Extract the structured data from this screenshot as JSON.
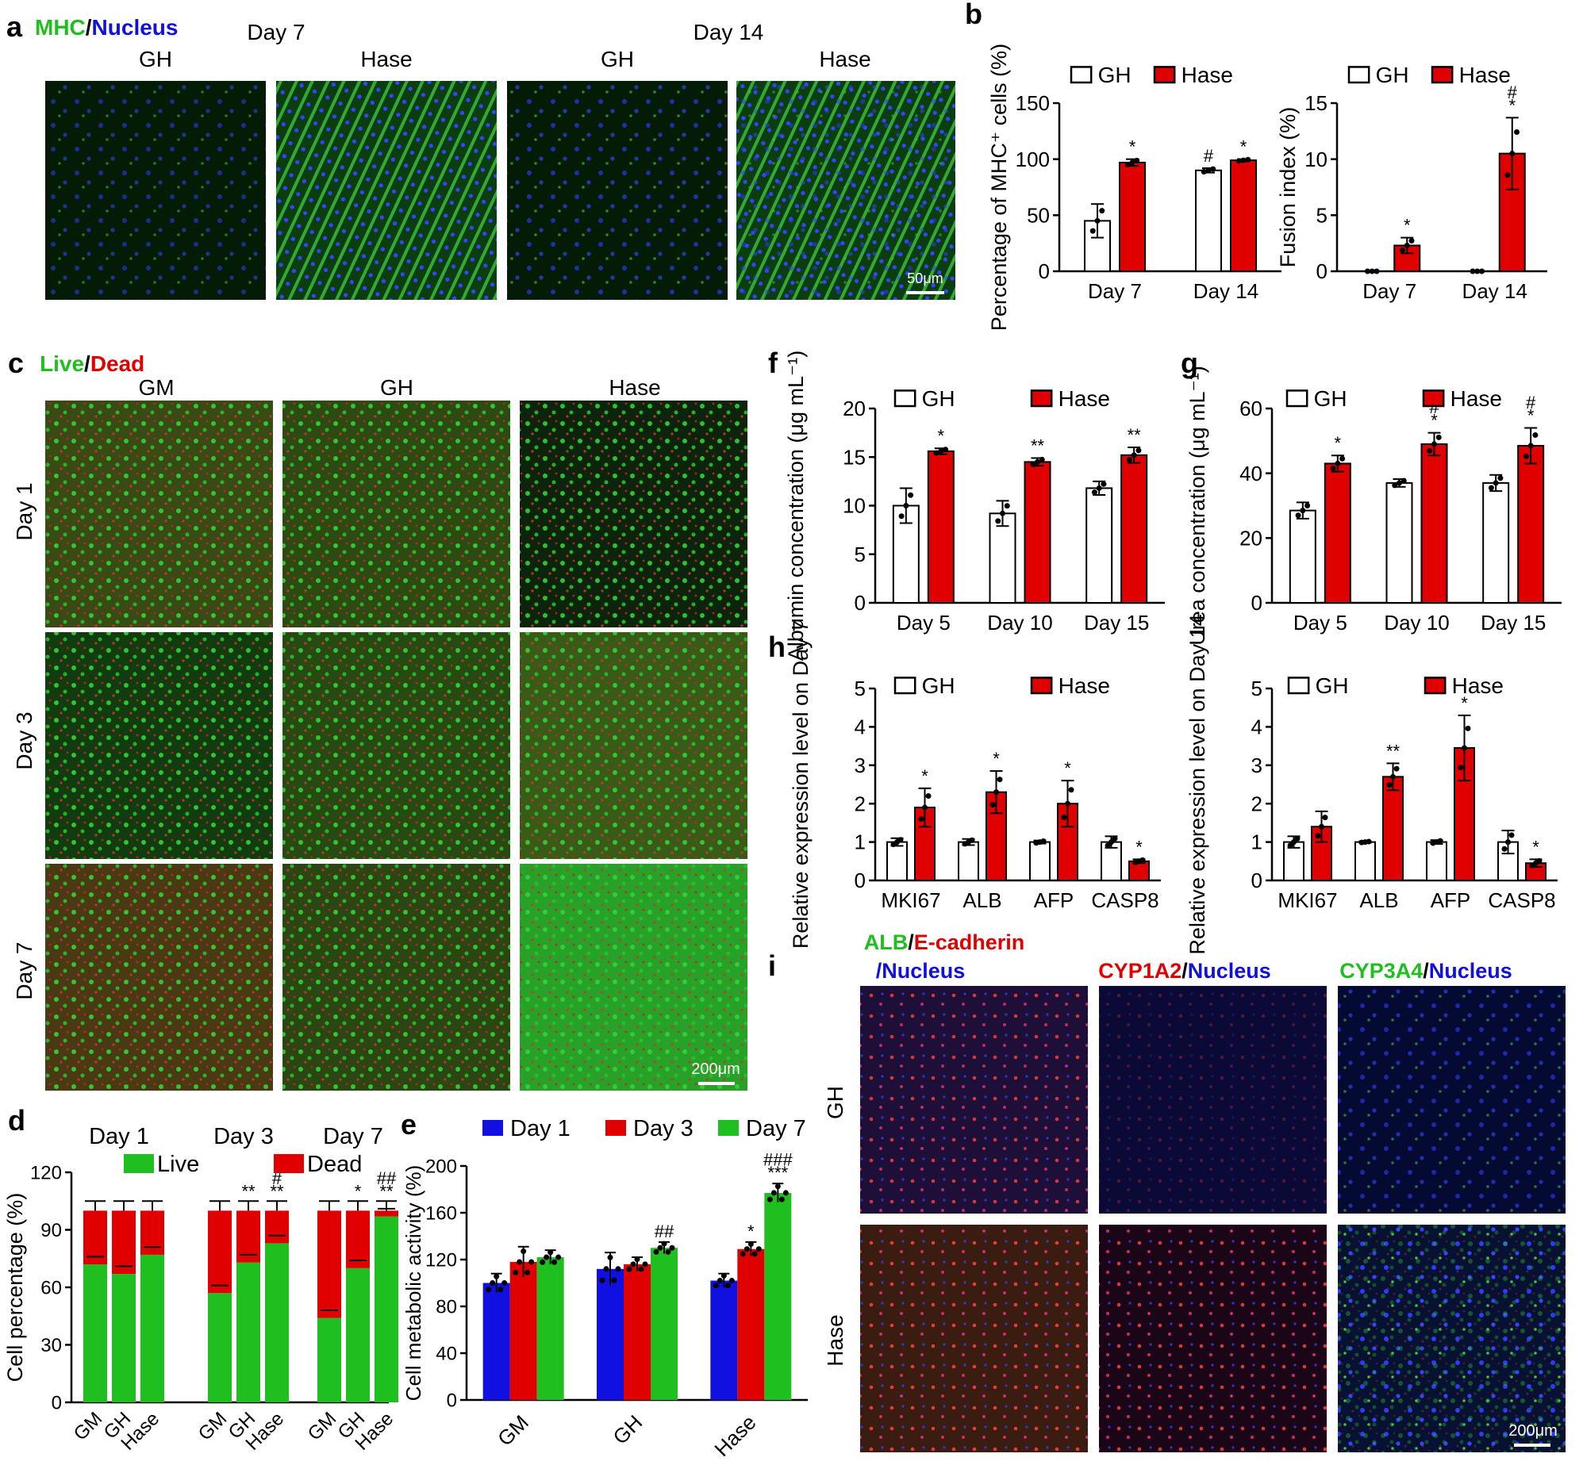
{
  "colors": {
    "green": "#1fbf1f",
    "red": "#e00000",
    "blue": "#1010e0",
    "gh_fill": "#ffffff",
    "hase_fill": "#e00000"
  },
  "panel_a": {
    "letter": "a",
    "title_mhc": "MHC",
    "title_sep": "/",
    "title_nucleus": "Nucleus",
    "day7": "Day 7",
    "day14": "Day 14",
    "cols": [
      "GH",
      "Hase",
      "GH",
      "Hase"
    ],
    "scale": "50μm",
    "images": [
      {
        "name": "mhc-gh-day7",
        "density": 0.2,
        "fiber": false
      },
      {
        "name": "mhc-hase-day7",
        "density": 0.5,
        "fiber": true
      },
      {
        "name": "mhc-gh-day14",
        "density": 0.25,
        "fiber": false
      },
      {
        "name": "mhc-hase-day14",
        "density": 0.9,
        "fiber": true
      }
    ]
  },
  "panel_b": {
    "letter": "b"
  },
  "panel_c": {
    "letter": "c",
    "title_live": "Live",
    "title_sep": "/",
    "title_dead": "Dead",
    "cols": [
      "GM",
      "GH",
      "Hase"
    ],
    "rows": [
      "Day 1",
      "Day 3",
      "Day 7"
    ],
    "scale": "200μm"
  },
  "panel_d": {
    "letter": "d"
  },
  "panel_e": {
    "letter": "e"
  },
  "panel_f": {
    "letter": "f"
  },
  "panel_g": {
    "letter": "g"
  },
  "panel_h": {
    "letter": "h"
  },
  "panel_i": {
    "letter": "i",
    "col1_a": "ALB",
    "col1_sep": "/",
    "col1_b": "E-cadherin",
    "col1_c": "/Nucleus",
    "col2_a": "CYP1A2",
    "col2_sep": "/",
    "col2_b": "Nucleus",
    "col3_a": "CYP3A4",
    "col3_sep": "/",
    "col3_b": "Nucleus",
    "rows": [
      "GH",
      "Hase"
    ],
    "scale": "200μm"
  },
  "chart_data": [
    {
      "id": "b1",
      "type": "bar",
      "categories": [
        "Day 7",
        "Day 14"
      ],
      "ylabel": "Percentage of MHC⁺ cells (%)",
      "ylim": [
        0,
        150
      ],
      "yticks": [
        0,
        50,
        100,
        150
      ],
      "legend": [
        "GH",
        "Hase"
      ],
      "series": [
        {
          "name": "GH",
          "values": [
            45,
            90
          ],
          "err": [
            15,
            2
          ],
          "marks": [
            "",
            "#"
          ]
        },
        {
          "name": "Hase",
          "values": [
            97,
            99
          ],
          "err": [
            3,
            1
          ],
          "marks": [
            "*",
            "*"
          ]
        }
      ]
    },
    {
      "id": "b2",
      "type": "bar",
      "categories": [
        "Day 7",
        "Day 14"
      ],
      "ylabel": "Fusion index (%)",
      "ylim": [
        0,
        15
      ],
      "yticks": [
        0,
        5,
        10,
        15
      ],
      "legend": [
        "GH",
        "Hase"
      ],
      "series": [
        {
          "name": "GH",
          "values": [
            0,
            0
          ],
          "err": [
            0,
            0
          ],
          "marks": [
            "",
            ""
          ]
        },
        {
          "name": "Hase",
          "values": [
            2.3,
            10.5
          ],
          "err": [
            0.7,
            3.2
          ],
          "marks": [
            "*",
            "#\n*"
          ]
        }
      ]
    },
    {
      "id": "d",
      "type": "bar",
      "groups": [
        "Day 1",
        "Day 3",
        "Day 7"
      ],
      "categories": [
        "GM",
        "GH",
        "Hase"
      ],
      "ylabel": "Cell percentage (%)",
      "ylim": [
        0,
        120
      ],
      "yticks": [
        0,
        30,
        60,
        90,
        120
      ],
      "legend": [
        "Live",
        "Dead"
      ],
      "series": [
        {
          "name": "Live",
          "values": [
            [
              72,
              67,
              77
            ],
            [
              57,
              73,
              83
            ],
            [
              44,
              70,
              97
            ]
          ]
        },
        {
          "name": "Dead",
          "values": [
            [
              28,
              33,
              23
            ],
            [
              43,
              27,
              17
            ],
            [
              56,
              30,
              3
            ]
          ]
        }
      ],
      "marks": [
        [
          "",
          "",
          ""
        ],
        [
          "",
          "**",
          "#\n**"
        ],
        [
          "",
          "*",
          "##\n**"
        ]
      ]
    },
    {
      "id": "e",
      "type": "bar",
      "categories": [
        "GM",
        "GH",
        "Hase"
      ],
      "ylabel": "Cell metabolic activity (%)",
      "ylim": [
        0,
        200
      ],
      "yticks": [
        0,
        40,
        80,
        120,
        160,
        200
      ],
      "legend": [
        "Day 1",
        "Day 3",
        "Day 7"
      ],
      "series": [
        {
          "name": "Day 1",
          "values": [
            100,
            112,
            102
          ],
          "err": [
            8,
            14,
            6
          ]
        },
        {
          "name": "Day 3",
          "values": [
            118,
            116,
            129
          ],
          "err": [
            13,
            6,
            6
          ]
        },
        {
          "name": "Day 7",
          "values": [
            122,
            130,
            177
          ],
          "err": [
            6,
            5,
            8
          ]
        }
      ],
      "marks": [
        [
          "",
          "",
          ""
        ],
        [
          "",
          "",
          "##"
        ],
        [
          "",
          "*",
          "###\n***"
        ]
      ]
    },
    {
      "id": "f",
      "type": "bar",
      "categories": [
        "Day 5",
        "Day 10",
        "Day 15"
      ],
      "ylabel": "Albumin concentration (μg mL⁻¹)",
      "ylim": [
        0,
        20
      ],
      "yticks": [
        0,
        5,
        10,
        15,
        20
      ],
      "legend": [
        "GH",
        "Hase"
      ],
      "series": [
        {
          "name": "GH",
          "values": [
            10,
            9.2,
            11.8
          ],
          "err": [
            1.8,
            1.3,
            0.7
          ],
          "marks": [
            "",
            "",
            ""
          ]
        },
        {
          "name": "Hase",
          "values": [
            15.6,
            14.5,
            15.2
          ],
          "err": [
            0.3,
            0.4,
            0.8
          ],
          "marks": [
            "*",
            "**",
            "**"
          ]
        }
      ]
    },
    {
      "id": "g",
      "type": "bar",
      "categories": [
        "Day 5",
        "Day 10",
        "Day 15"
      ],
      "ylabel": "Urea concentration (μg mL⁻¹)",
      "ylim": [
        0,
        60
      ],
      "yticks": [
        0,
        20,
        40,
        60
      ],
      "legend": [
        "GH",
        "Hase"
      ],
      "series": [
        {
          "name": "GH",
          "values": [
            28.5,
            37,
            37
          ],
          "err": [
            2.5,
            1.2,
            2.5
          ],
          "marks": [
            "",
            "",
            ""
          ]
        },
        {
          "name": "Hase",
          "values": [
            43,
            49,
            48.5
          ],
          "err": [
            2.5,
            3.5,
            5.5
          ],
          "marks": [
            "*",
            "#\n*",
            "#\n*"
          ]
        }
      ]
    },
    {
      "id": "h1",
      "type": "bar",
      "categories": [
        "MKI67",
        "ALB",
        "AFP",
        "CASP8"
      ],
      "ylabel": "Relative expression level on Day 7",
      "ylim": [
        0,
        5
      ],
      "yticks": [
        0,
        1,
        2,
        3,
        4,
        5
      ],
      "legend": [
        "GH",
        "Hase"
      ],
      "series": [
        {
          "name": "GH",
          "values": [
            1,
            1,
            1,
            1
          ],
          "err": [
            0.1,
            0.08,
            0.04,
            0.15
          ],
          "marks": [
            "",
            "",
            "",
            ""
          ]
        },
        {
          "name": "Hase",
          "values": [
            1.9,
            2.3,
            2,
            0.5
          ],
          "err": [
            0.5,
            0.55,
            0.6,
            0.05
          ],
          "marks": [
            "*",
            "*",
            "*",
            "*"
          ]
        }
      ]
    },
    {
      "id": "h2",
      "type": "bar",
      "categories": [
        "MKI67",
        "ALB",
        "AFP",
        "CASP8"
      ],
      "ylabel": "Relative expression level on Day 14",
      "ylim": [
        0,
        5
      ],
      "yticks": [
        0,
        1,
        2,
        3,
        4,
        5
      ],
      "legend": [
        "GH",
        "Hase"
      ],
      "series": [
        {
          "name": "GH",
          "values": [
            1,
            1,
            1,
            1
          ],
          "err": [
            0.15,
            0.02,
            0.05,
            0.3
          ],
          "marks": [
            "",
            "",
            "",
            ""
          ]
        },
        {
          "name": "Hase",
          "values": [
            1.4,
            2.7,
            3.45,
            0.45
          ],
          "err": [
            0.4,
            0.35,
            0.85,
            0.1
          ],
          "marks": [
            "",
            "**",
            "*",
            "*"
          ]
        }
      ]
    }
  ]
}
